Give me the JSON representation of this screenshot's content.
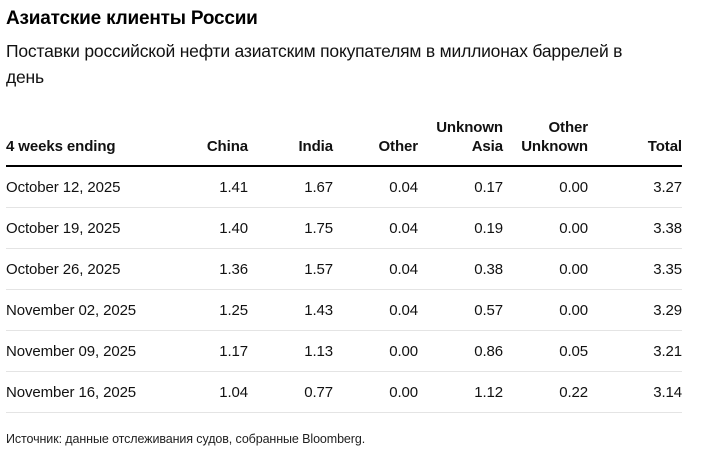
{
  "chart_data": {
    "type": "table",
    "title": "Азиатские клиенты России",
    "subtitle": "Поставки российской нефти азиатским покупателям в миллионах баррелей в день",
    "columns": [
      "4 weeks ending",
      "China",
      "India",
      "Other",
      "Unknown Asia",
      "Other Unknown",
      "Total"
    ],
    "rows": [
      {
        "date": "October 12, 2025",
        "values": [
          "1.41",
          "1.67",
          "0.04",
          "0.17",
          "0.00",
          "3.27"
        ]
      },
      {
        "date": "October 19, 2025",
        "values": [
          "1.40",
          "1.75",
          "0.04",
          "0.19",
          "0.00",
          "3.38"
        ]
      },
      {
        "date": "October 26, 2025",
        "values": [
          "1.36",
          "1.57",
          "0.04",
          "0.38",
          "0.00",
          "3.35"
        ]
      },
      {
        "date": "November 02, 2025",
        "values": [
          "1.25",
          "1.43",
          "0.04",
          "0.57",
          "0.00",
          "3.29"
        ]
      },
      {
        "date": "November 09, 2025",
        "values": [
          "1.17",
          "1.13",
          "0.00",
          "0.86",
          "0.05",
          "3.21"
        ]
      },
      {
        "date": "November 16, 2025",
        "values": [
          "1.04",
          "0.77",
          "0.00",
          "1.12",
          "0.22",
          "3.14"
        ]
      }
    ],
    "source": "Источник: данные отслеживания судов, собранные Bloomberg.",
    "unit": "millions of barrels per day",
    "text_color": "#111111",
    "header_rule_color": "#000000",
    "row_divider_color": "#e4e4e4"
  }
}
